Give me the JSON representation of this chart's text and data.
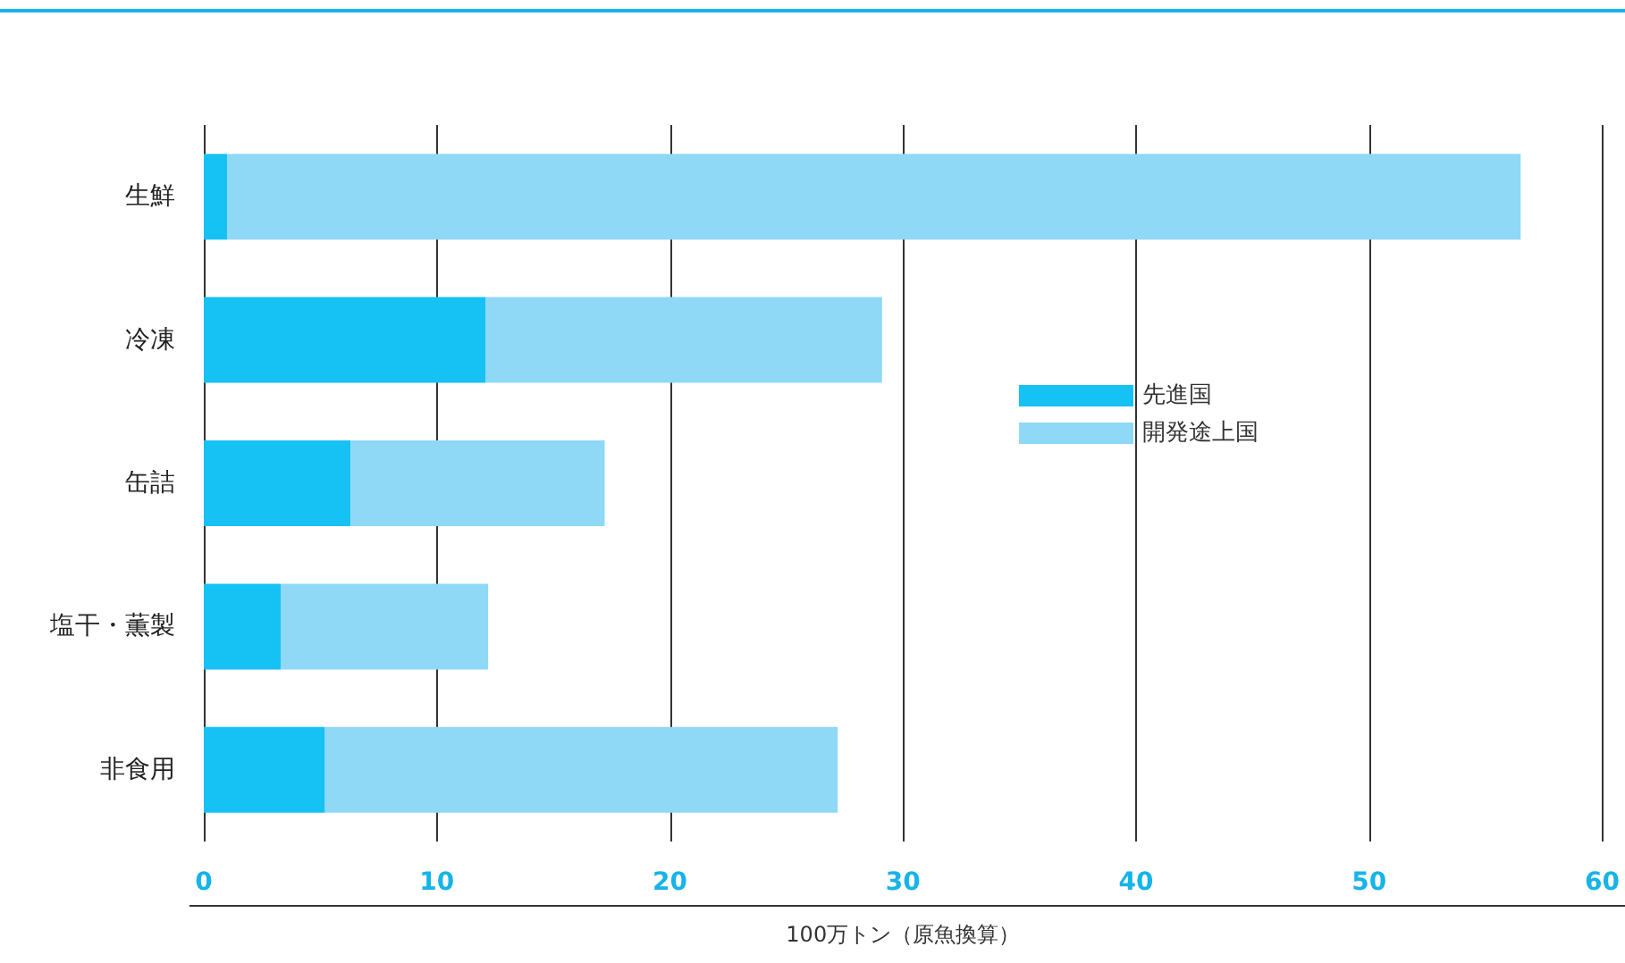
{
  "chart_data": {
    "type": "bar",
    "orientation": "horizontal",
    "stacked": true,
    "categories": [
      "生鮮",
      "冷凍",
      "缶詰",
      "塩干・薫製",
      "非食用"
    ],
    "series": [
      {
        "name": "先進国",
        "color": "#16c1f3",
        "values": [
          1.0,
          12.1,
          6.3,
          3.3,
          5.2
        ]
      },
      {
        "name": "開発途上国",
        "color": "#8fd8f6",
        "values": [
          55.5,
          17.0,
          10.9,
          8.9,
          22.0
        ]
      }
    ],
    "xlim": [
      0,
      60
    ],
    "xticks": [
      0,
      10,
      20,
      30,
      40,
      50,
      60
    ],
    "xlabel": "100万トン（原魚換算）",
    "grid": "x",
    "legend": "right"
  }
}
